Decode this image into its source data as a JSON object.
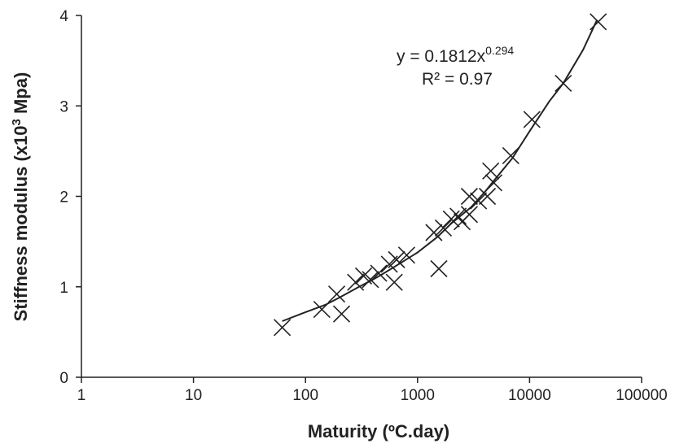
{
  "chart_data": {
    "type": "scatter",
    "xscale": "log",
    "xlim": [
      1,
      100000
    ],
    "ylim": [
      0,
      4
    ],
    "grid": false,
    "xlabel": "Maturity (ºC.day)",
    "ylabel": {
      "prefix": "Stiffness modulus (x10",
      "sup": "3",
      "suffix": " Mpa)"
    },
    "x_ticks": [
      1,
      10,
      100,
      1000,
      10000,
      100000
    ],
    "x_tick_labels": [
      "1",
      "10",
      "100",
      "1000",
      "10000",
      "100000"
    ],
    "y_ticks": [
      0,
      1,
      2,
      3,
      4
    ],
    "y_tick_labels": [
      "0",
      "1",
      "2",
      "3",
      "4"
    ],
    "annotation": {
      "equation_prefix": "y = 0.1812x",
      "equation_exponent": "0.294",
      "r_squared": "R² = 0.97"
    },
    "points": [
      {
        "x": 62,
        "y": 0.55
      },
      {
        "x": 140,
        "y": 0.75
      },
      {
        "x": 190,
        "y": 0.92
      },
      {
        "x": 210,
        "y": 0.7
      },
      {
        "x": 280,
        "y": 1.05
      },
      {
        "x": 330,
        "y": 1.12
      },
      {
        "x": 380,
        "y": 1.08
      },
      {
        "x": 450,
        "y": 1.15
      },
      {
        "x": 560,
        "y": 1.25
      },
      {
        "x": 620,
        "y": 1.05
      },
      {
        "x": 650,
        "y": 1.3
      },
      {
        "x": 800,
        "y": 1.35
      },
      {
        "x": 1400,
        "y": 1.6
      },
      {
        "x": 1550,
        "y": 1.2
      },
      {
        "x": 1700,
        "y": 1.65
      },
      {
        "x": 2000,
        "y": 1.75
      },
      {
        "x": 2300,
        "y": 1.78
      },
      {
        "x": 2500,
        "y": 1.72
      },
      {
        "x": 2900,
        "y": 1.8
      },
      {
        "x": 2900,
        "y": 2.0
      },
      {
        "x": 3500,
        "y": 1.95
      },
      {
        "x": 4200,
        "y": 2.0
      },
      {
        "x": 4500,
        "y": 2.28
      },
      {
        "x": 4800,
        "y": 2.15
      },
      {
        "x": 6800,
        "y": 2.45
      },
      {
        "x": 10500,
        "y": 2.85
      },
      {
        "x": 20000,
        "y": 3.25
      },
      {
        "x": 41000,
        "y": 3.93
      }
    ],
    "trend": {
      "label": "y = 0.1812x^0.294",
      "x": [
        62,
        100,
        150,
        200,
        300,
        400,
        500,
        700,
        1000,
        1500,
        2000,
        3000,
        4000,
        5000,
        7000,
        10000,
        15000,
        20000,
        30000,
        40000
      ],
      "y": [
        0.62,
        0.72,
        0.8,
        0.88,
        1.0,
        1.08,
        1.15,
        1.26,
        1.38,
        1.55,
        1.7,
        1.88,
        2.05,
        2.2,
        2.42,
        2.72,
        3.05,
        3.25,
        3.62,
        3.95
      ]
    }
  }
}
